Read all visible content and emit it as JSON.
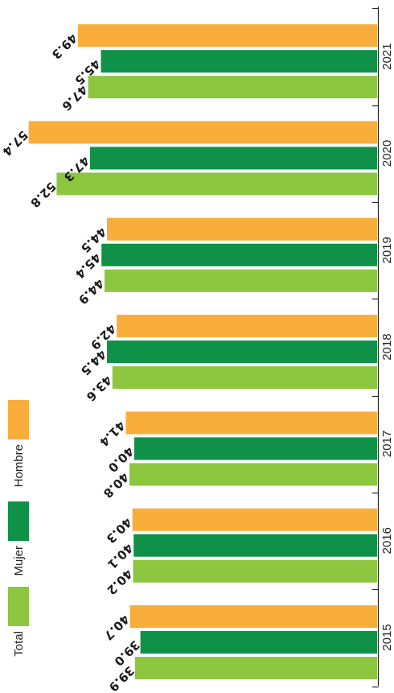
{
  "chart_data": {
    "type": "bar",
    "orientation": "horizontal-rotated",
    "categories": [
      "2015",
      "2016",
      "2017",
      "2018",
      "2019",
      "2020",
      "2021"
    ],
    "series": [
      {
        "name": "Total",
        "color": "#8dc63f",
        "values": [
          39.9,
          40.2,
          40.8,
          43.6,
          44.9,
          52.8,
          47.6
        ]
      },
      {
        "name": "Mujer",
        "color": "#0f9147",
        "values": [
          39.0,
          40.1,
          40.0,
          44.5,
          45.4,
          47.3,
          45.5
        ]
      },
      {
        "name": "Hombre",
        "color": "#f9ae3c",
        "values": [
          40.7,
          40.3,
          41.4,
          42.9,
          44.5,
          57.4,
          49.3
        ]
      }
    ],
    "value_labels": {
      "Total": [
        "39.9",
        "40.2",
        "40.8",
        "43.6",
        "44.9",
        "52.8",
        "47.6"
      ],
      "Mujer": [
        "39.0",
        "40.1",
        "40.0",
        "44.5",
        "45.4",
        "47.3",
        "45.5"
      ],
      "Hombre": [
        "40.7",
        "40.3",
        "41.4",
        "42.9",
        "44.5",
        "57.4",
        "49.3"
      ]
    },
    "value_axis_visible": false,
    "legend_position": "left",
    "grid": false
  }
}
